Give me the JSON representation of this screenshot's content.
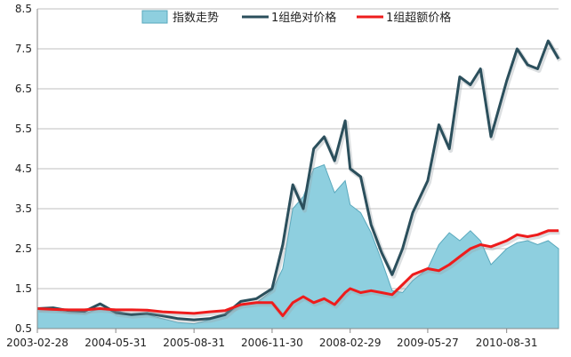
{
  "chart_data": {
    "type": "line",
    "title": "",
    "xlabel": "",
    "ylabel": "",
    "ylim": [
      0.5,
      8.5
    ],
    "yticks": [
      "0.5",
      "1.5",
      "2.5",
      "3.5",
      "4.5",
      "5.5",
      "6.5",
      "7.5",
      "8.5"
    ],
    "xticks": [
      "2003-02-28",
      "2004-05-31",
      "2005-08-31",
      "2006-11-30",
      "2008-02-29",
      "2009-05-27",
      "2010-08-31"
    ],
    "grid": true,
    "legend_position": "top",
    "x": [
      "2003-02-28",
      "2003-05-31",
      "2003-08-31",
      "2003-11-30",
      "2004-02-29",
      "2004-05-31",
      "2004-08-31",
      "2004-11-30",
      "2005-02-28",
      "2005-05-31",
      "2005-08-31",
      "2005-11-30",
      "2006-02-28",
      "2006-05-31",
      "2006-08-31",
      "2006-11-30",
      "2007-01-31",
      "2007-03-31",
      "2007-05-31",
      "2007-07-31",
      "2007-09-30",
      "2007-11-30",
      "2008-01-31",
      "2008-02-29",
      "2008-04-30",
      "2008-06-30",
      "2008-08-31",
      "2008-10-31",
      "2008-12-31",
      "2009-02-28",
      "2009-05-27",
      "2009-07-31",
      "2009-09-30",
      "2009-11-30",
      "2010-01-31",
      "2010-03-31",
      "2010-05-31",
      "2010-08-31",
      "2010-10-31",
      "2010-12-31",
      "2011-02-28",
      "2011-04-30",
      "2011-06-30"
    ],
    "series": [
      {
        "name": "指数走势",
        "style": "area",
        "color": "#8ecfdf",
        "values": [
          1.0,
          0.97,
          0.9,
          0.88,
          1.0,
          0.95,
          0.85,
          0.85,
          0.75,
          0.65,
          0.62,
          0.72,
          0.82,
          1.1,
          1.15,
          1.45,
          2.0,
          3.5,
          3.8,
          4.5,
          4.6,
          3.9,
          4.2,
          3.6,
          3.4,
          2.9,
          2.2,
          1.45,
          1.4,
          1.7,
          2.0,
          2.6,
          2.9,
          2.7,
          2.95,
          2.7,
          2.1,
          2.5,
          2.65,
          2.7,
          2.6,
          2.7,
          2.5
        ]
      },
      {
        "name": "1组绝对价格",
        "style": "line",
        "color": "#2b4f5c",
        "values": [
          1.0,
          1.02,
          0.95,
          0.93,
          1.12,
          0.9,
          0.85,
          0.88,
          0.82,
          0.75,
          0.72,
          0.75,
          0.85,
          1.18,
          1.25,
          1.5,
          2.6,
          4.1,
          3.5,
          5.0,
          5.3,
          4.7,
          5.7,
          4.5,
          4.3,
          3.1,
          2.4,
          1.85,
          2.5,
          3.4,
          4.2,
          5.6,
          5.0,
          6.8,
          6.6,
          7.0,
          5.3,
          6.7,
          7.5,
          7.1,
          7.0,
          7.7,
          7.25
        ]
      },
      {
        "name": "1组超额价格",
        "style": "line",
        "color": "#ee1c1c",
        "values": [
          1.0,
          0.98,
          0.97,
          0.97,
          1.0,
          0.97,
          0.97,
          0.96,
          0.92,
          0.9,
          0.88,
          0.92,
          0.95,
          1.1,
          1.15,
          1.15,
          0.82,
          1.15,
          1.3,
          1.15,
          1.25,
          1.1,
          1.4,
          1.5,
          1.4,
          1.45,
          1.4,
          1.35,
          1.6,
          1.85,
          2.0,
          1.95,
          2.1,
          2.3,
          2.5,
          2.6,
          2.55,
          2.7,
          2.85,
          2.8,
          2.85,
          2.95,
          2.95
        ]
      }
    ]
  }
}
